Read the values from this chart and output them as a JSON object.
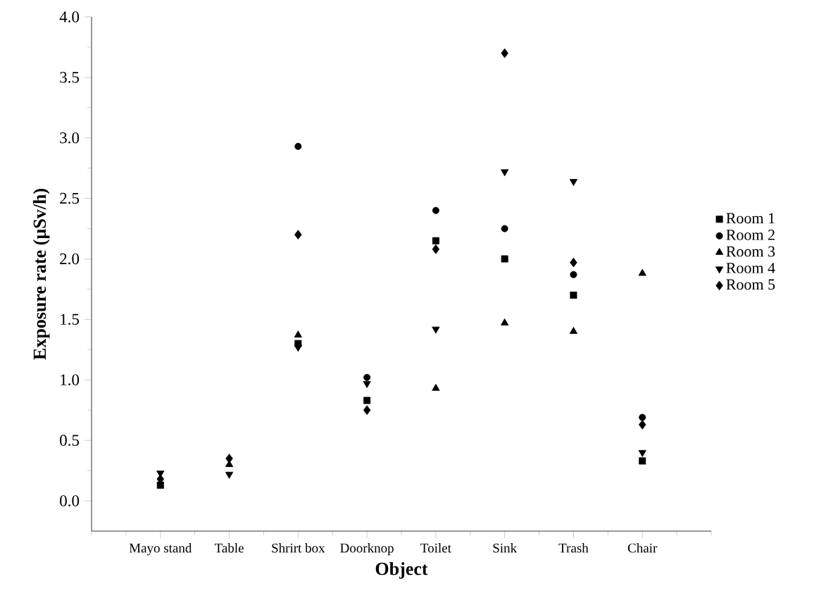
{
  "chart_data": {
    "type": "scatter",
    "xlabel": "Object",
    "ylabel": "Exposure rate (µSv/h)",
    "categories": [
      "Mayo stand",
      "Table",
      "Shrirt box",
      "Doorknop",
      "Toilet",
      "Sink",
      "Trash",
      "Chair"
    ],
    "series": [
      {
        "name": "Room 1",
        "color": "#000000",
        "marker": "square",
        "values": [
          0.13,
          null,
          1.3,
          0.83,
          2.15,
          2.0,
          1.7,
          0.33
        ]
      },
      {
        "name": "Room 2",
        "color": "#000000",
        "marker": "circle",
        "values": [
          null,
          null,
          2.93,
          1.02,
          2.4,
          2.25,
          1.87,
          0.69
        ]
      },
      {
        "name": "Room 3",
        "color": "#000000",
        "marker": "triangle",
        "values": [
          null,
          0.3,
          1.37,
          null,
          0.93,
          1.47,
          1.4,
          1.88
        ]
      },
      {
        "name": "Room 4",
        "color": "#000000",
        "marker": "triangle down",
        "values": [
          0.23,
          0.22,
          1.27,
          0.97,
          1.42,
          2.72,
          2.64,
          0.4
        ]
      },
      {
        "name": "Room 5",
        "color": "#000000",
        "marker": "diamond",
        "values": [
          0.18,
          0.35,
          2.2,
          0.75,
          2.08,
          3.7,
          1.97,
          0.63
        ]
      }
    ],
    "ylim": [
      -0.25,
      4.0
    ],
    "yticks": [
      {
        "value": 0,
        "label": "0.0"
      },
      {
        "value": 0.5,
        "label": "0.5"
      },
      {
        "value": 1,
        "label": "1.0"
      },
      {
        "value": 1.5,
        "label": "1.5"
      },
      {
        "value": 2,
        "label": "2.0"
      },
      {
        "value": 2.5,
        "label": "2.5"
      },
      {
        "value": 3,
        "label": "3.0"
      },
      {
        "value": 3.5,
        "label": "3.5"
      },
      {
        "value": 4,
        "label": "4.0"
      }
    ],
    "grid": false,
    "legend": "right"
  }
}
